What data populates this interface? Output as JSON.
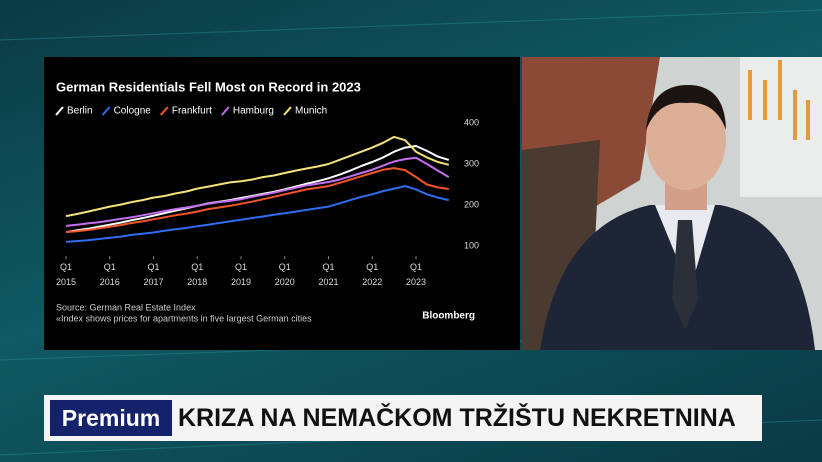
{
  "chart_data": {
    "type": "line",
    "title": "German Residentials Fell Most on Record in 2023",
    "x": [
      2015,
      2015.25,
      2015.5,
      2015.75,
      2016,
      2016.25,
      2016.5,
      2016.75,
      2017,
      2017.25,
      2017.5,
      2017.75,
      2018,
      2018.25,
      2018.5,
      2018.75,
      2019,
      2019.25,
      2019.5,
      2019.75,
      2020,
      2020.25,
      2020.5,
      2020.75,
      2021,
      2021.25,
      2021.5,
      2021.75,
      2022,
      2022.25,
      2022.5,
      2022.75,
      2023,
      2023.25,
      2023.5,
      2023.75
    ],
    "series": [
      {
        "name": "Berlin",
        "color": "#ffffff",
        "values": [
          134,
          138,
          142,
          147,
          152,
          157,
          163,
          168,
          174,
          180,
          186,
          192,
          198,
          204,
          208,
          212,
          217,
          222,
          227,
          232,
          238,
          245,
          252,
          258,
          265,
          274,
          284,
          295,
          305,
          316,
          330,
          340,
          344,
          332,
          318,
          310
        ]
      },
      {
        "name": "Cologne",
        "color": "#2f6ef2",
        "values": [
          110,
          112,
          114,
          117,
          120,
          123,
          127,
          130,
          133,
          137,
          141,
          144,
          148,
          152,
          156,
          160,
          164,
          168,
          172,
          176,
          180,
          184,
          188,
          192,
          196,
          204,
          212,
          220,
          226,
          234,
          240,
          246,
          238,
          226,
          218,
          212
        ]
      },
      {
        "name": "Frankfurt",
        "color": "#f0562a",
        "values": [
          134,
          136,
          139,
          143,
          147,
          151,
          156,
          160,
          165,
          170,
          175,
          179,
          184,
          190,
          194,
          198,
          203,
          208,
          214,
          220,
          226,
          232,
          238,
          242,
          246,
          254,
          262,
          270,
          278,
          286,
          290,
          285,
          268,
          250,
          243,
          239
        ]
      },
      {
        "name": "Hamburg",
        "color": "#c46ff2",
        "values": [
          149,
          152,
          155,
          158,
          162,
          166,
          170,
          175,
          180,
          185,
          190,
          194,
          198,
          203,
          207,
          210,
          214,
          220,
          225,
          230,
          236,
          242,
          248,
          252,
          256,
          262,
          270,
          278,
          286,
          296,
          306,
          312,
          315,
          300,
          284,
          268
        ]
      },
      {
        "name": "Munich",
        "color": "#f4e27a",
        "values": [
          173,
          178,
          184,
          190,
          196,
          201,
          207,
          212,
          218,
          222,
          228,
          233,
          240,
          245,
          250,
          255,
          258,
          262,
          268,
          272,
          278,
          284,
          289,
          294,
          300,
          310,
          320,
          330,
          340,
          352,
          366,
          358,
          330,
          316,
          305,
          298
        ]
      }
    ],
    "xlim": [
      2014.9,
      2024.2
    ],
    "xticks": [
      {
        "value": 2015,
        "label": "Q1 2015"
      },
      {
        "value": 2016,
        "label": "Q1 2016"
      },
      {
        "value": 2017,
        "label": "Q1 2017"
      },
      {
        "value": 2018,
        "label": "Q1 2018"
      },
      {
        "value": 2019,
        "label": "Q1 2019"
      },
      {
        "value": 2020,
        "label": "Q1 2020"
      },
      {
        "value": 2021,
        "label": "Q1 2021"
      },
      {
        "value": 2022,
        "label": "Q1 2022"
      },
      {
        "value": 2023,
        "label": "Q1 2023"
      }
    ],
    "ylim": [
      80,
      400
    ],
    "yticks": [
      100,
      200,
      300,
      400
    ],
    "grid": false,
    "source": "Source: German Real Estate Index",
    "note": "«Index shows prices for apartments in five largest German cities",
    "brand": "Bloomberg"
  },
  "banner": {
    "tag": "Premium",
    "headline": "KRIZA NA NEMAČKOM TRŽIŠTU NEKRETNINA"
  }
}
